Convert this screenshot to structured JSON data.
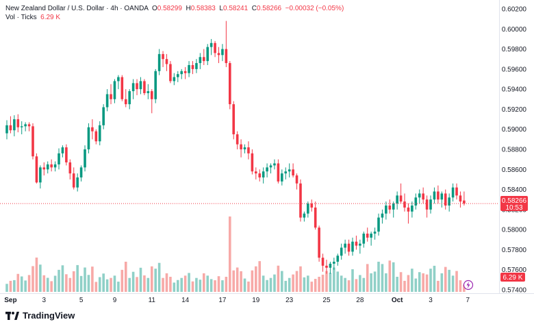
{
  "header": {
    "symbol": "New Zealand Dollar / U.S. Dollar · 4h · OANDA",
    "o_label": "O",
    "o_value": "0.58299",
    "h_label": "H",
    "h_value": "0.58383",
    "l_label": "L",
    "l_value": "0.58241",
    "c_label": "C",
    "c_value": "0.58266",
    "change": "−0.00032 (−0.05%)",
    "vol_label": "Vol · Ticks",
    "vol_value": "6.29 K"
  },
  "price_badge": {
    "price": "0.58266",
    "countdown": "10:53",
    "color": "#f23645"
  },
  "volume_badge": {
    "value": "6.29 K"
  },
  "brand": {
    "name": "TradingView"
  },
  "colors": {
    "up": "#089981",
    "down": "#f23645",
    "up_vol": "#8fd0c7",
    "down_vol": "#f7a9a7"
  },
  "chart_data": {
    "type": "candlestick",
    "timeframe": "4h",
    "y_ticks": [
      "0.60200",
      "0.60000",
      "0.59800",
      "0.59600",
      "0.59400",
      "0.59200",
      "0.59000",
      "0.58800",
      "0.58600",
      "0.58400",
      "0.58200",
      "0.58000",
      "0.57800",
      "0.57600",
      "0.57400"
    ],
    "ylim": [
      0.574,
      0.602
    ],
    "x_ticks": [
      {
        "label": "Sep",
        "index": 1
      },
      {
        "label": "3",
        "index": 10
      },
      {
        "label": "5",
        "index": 20
      },
      {
        "label": "9",
        "index": 29
      },
      {
        "label": "11",
        "index": 39
      },
      {
        "label": "14",
        "index": 48
      },
      {
        "label": "17",
        "index": 58
      },
      {
        "label": "19",
        "index": 67
      },
      {
        "label": "23",
        "index": 76
      },
      {
        "label": "25",
        "index": 86
      },
      {
        "label": "28",
        "index": 95
      },
      {
        "label": "Oct",
        "index": 105
      },
      {
        "label": "3",
        "index": 114
      },
      {
        "label": "7",
        "index": 124
      }
    ],
    "candles": [
      [
        0.5896,
        0.5909,
        0.589,
        0.5904,
        6.9
      ],
      [
        0.5904,
        0.5913,
        0.5896,
        0.5899,
        9.5
      ],
      [
        0.5899,
        0.5914,
        0.5893,
        0.591,
        10.1
      ],
      [
        0.591,
        0.5915,
        0.5897,
        0.5902,
        15.5
      ],
      [
        0.5902,
        0.5908,
        0.5895,
        0.5903,
        13.3
      ],
      [
        0.5903,
        0.5907,
        0.5898,
        0.5905,
        9.8
      ],
      [
        0.5905,
        0.5907,
        0.5898,
        0.5903,
        14.5
      ],
      [
        0.5903,
        0.5906,
        0.587,
        0.5873,
        22.2
      ],
      [
        0.5873,
        0.5876,
        0.5846,
        0.5847,
        29.6
      ],
      [
        0.5847,
        0.5864,
        0.5841,
        0.5862,
        23.5
      ],
      [
        0.5862,
        0.5867,
        0.5854,
        0.586,
        14.3
      ],
      [
        0.586,
        0.5868,
        0.5856,
        0.5865,
        12.1
      ],
      [
        0.5865,
        0.587,
        0.5858,
        0.5862,
        9.2
      ],
      [
        0.5862,
        0.5868,
        0.5858,
        0.5865,
        13.9
      ],
      [
        0.5865,
        0.5881,
        0.586,
        0.5876,
        19.0
      ],
      [
        0.5876,
        0.5884,
        0.5872,
        0.5882,
        22.9
      ],
      [
        0.5882,
        0.5885,
        0.5864,
        0.5867,
        15.2
      ],
      [
        0.5867,
        0.587,
        0.585,
        0.5856,
        12.0
      ],
      [
        0.5856,
        0.5862,
        0.584,
        0.5842,
        17.8
      ],
      [
        0.5842,
        0.5856,
        0.5838,
        0.5852,
        23.1
      ],
      [
        0.5852,
        0.5864,
        0.5848,
        0.5862,
        13.7
      ],
      [
        0.5862,
        0.5884,
        0.5858,
        0.588,
        21.0
      ],
      [
        0.588,
        0.5906,
        0.5876,
        0.5902,
        14.6
      ],
      [
        0.5902,
        0.591,
        0.589,
        0.5898,
        21.8
      ],
      [
        0.5898,
        0.59,
        0.5885,
        0.5888,
        8.6
      ],
      [
        0.5888,
        0.5908,
        0.5884,
        0.5904,
        12.7
      ],
      [
        0.5904,
        0.5925,
        0.59,
        0.5922,
        15.8
      ],
      [
        0.5922,
        0.594,
        0.5918,
        0.5935,
        10.8
      ],
      [
        0.5935,
        0.5945,
        0.5925,
        0.593,
        12.0
      ],
      [
        0.593,
        0.595,
        0.5926,
        0.5948,
        14.0
      ],
      [
        0.5948,
        0.5954,
        0.594,
        0.5952,
        8.8
      ],
      [
        0.5952,
        0.5954,
        0.5928,
        0.593,
        19.0
      ],
      [
        0.593,
        0.594,
        0.5922,
        0.5925,
        26.0
      ],
      [
        0.5925,
        0.594,
        0.592,
        0.5938,
        12.0
      ],
      [
        0.5938,
        0.595,
        0.593,
        0.5946,
        17.3
      ],
      [
        0.5946,
        0.595,
        0.5934,
        0.594,
        12.8
      ],
      [
        0.594,
        0.5952,
        0.5935,
        0.5948,
        20.8
      ],
      [
        0.5948,
        0.595,
        0.5934,
        0.5936,
        14.2
      ],
      [
        0.5936,
        0.5945,
        0.593,
        0.5938,
        12.0
      ],
      [
        0.5938,
        0.594,
        0.5916,
        0.593,
        22.0
      ],
      [
        0.593,
        0.596,
        0.5926,
        0.5958,
        20.0
      ],
      [
        0.5958,
        0.598,
        0.5954,
        0.5975,
        25.0
      ],
      [
        0.5975,
        0.5978,
        0.5962,
        0.597,
        12.0
      ],
      [
        0.597,
        0.5975,
        0.5958,
        0.5965,
        16.0
      ],
      [
        0.5965,
        0.5968,
        0.5946,
        0.5948,
        13.0
      ],
      [
        0.5948,
        0.5956,
        0.5944,
        0.5952,
        8.0
      ],
      [
        0.5952,
        0.5958,
        0.5947,
        0.5955,
        10.2
      ],
      [
        0.5955,
        0.596,
        0.595,
        0.5958,
        12.0
      ],
      [
        0.5958,
        0.5962,
        0.595,
        0.5956,
        14.0
      ],
      [
        0.5956,
        0.5968,
        0.5952,
        0.5964,
        16.3
      ],
      [
        0.5964,
        0.5968,
        0.5955,
        0.596,
        9.0
      ],
      [
        0.596,
        0.597,
        0.5956,
        0.5966,
        12.0
      ],
      [
        0.5966,
        0.5976,
        0.596,
        0.5972,
        10.5
      ],
      [
        0.5972,
        0.598,
        0.5964,
        0.5968,
        16.0
      ],
      [
        0.5968,
        0.5985,
        0.5964,
        0.5982,
        14.0
      ],
      [
        0.5982,
        0.599,
        0.5974,
        0.5986,
        11.0
      ],
      [
        0.5986,
        0.5988,
        0.5972,
        0.5976,
        10.0
      ],
      [
        0.5976,
        0.5982,
        0.5966,
        0.5974,
        13.5
      ],
      [
        0.5974,
        0.5985,
        0.5968,
        0.598,
        10.0
      ],
      [
        0.598,
        0.6008,
        0.5962,
        0.5966,
        13.0
      ],
      [
        0.5966,
        0.5968,
        0.592,
        0.5925,
        65.0
      ],
      [
        0.5925,
        0.5928,
        0.589,
        0.5895,
        18.5
      ],
      [
        0.5895,
        0.5898,
        0.588,
        0.5885,
        21.0
      ],
      [
        0.5885,
        0.589,
        0.5872,
        0.588,
        17.8
      ],
      [
        0.588,
        0.5885,
        0.5876,
        0.5882,
        11.5
      ],
      [
        0.5882,
        0.5888,
        0.587,
        0.5876,
        8.9
      ],
      [
        0.5876,
        0.588,
        0.5855,
        0.5858,
        18.5
      ],
      [
        0.5858,
        0.5862,
        0.585,
        0.5856,
        22.0
      ],
      [
        0.5856,
        0.586,
        0.5848,
        0.5852,
        26.5
      ],
      [
        0.5852,
        0.5862,
        0.5846,
        0.5858,
        14.0
      ],
      [
        0.5858,
        0.5866,
        0.5852,
        0.5862,
        10.2
      ],
      [
        0.5862,
        0.5866,
        0.5856,
        0.5864,
        12.0
      ],
      [
        0.5864,
        0.587,
        0.586,
        0.5866,
        15.0
      ],
      [
        0.5866,
        0.587,
        0.5846,
        0.5848,
        22.6
      ],
      [
        0.5848,
        0.586,
        0.5844,
        0.5856,
        18.0
      ],
      [
        0.5856,
        0.5862,
        0.585,
        0.5858,
        9.5
      ],
      [
        0.5858,
        0.5866,
        0.5852,
        0.586,
        12.0
      ],
      [
        0.586,
        0.5866,
        0.5852,
        0.5854,
        15.0
      ],
      [
        0.5854,
        0.5856,
        0.584,
        0.5846,
        18.0
      ],
      [
        0.5846,
        0.585,
        0.5808,
        0.5812,
        22.0
      ],
      [
        0.5812,
        0.5818,
        0.5808,
        0.5816,
        12.5
      ],
      [
        0.5816,
        0.5828,
        0.5812,
        0.5826,
        14.0
      ],
      [
        0.5826,
        0.583,
        0.5818,
        0.5822,
        8.8
      ],
      [
        0.5822,
        0.5828,
        0.58,
        0.5802,
        11.2
      ],
      [
        0.5802,
        0.5804,
        0.5768,
        0.5772,
        13.0
      ],
      [
        0.5772,
        0.5776,
        0.5758,
        0.5764,
        14.8
      ],
      [
        0.5764,
        0.577,
        0.5756,
        0.5762,
        18.0
      ],
      [
        0.5762,
        0.5768,
        0.5756,
        0.5766,
        16.5
      ],
      [
        0.5766,
        0.5772,
        0.576,
        0.5768,
        21.0
      ],
      [
        0.5768,
        0.5776,
        0.5764,
        0.5774,
        17.5
      ],
      [
        0.5774,
        0.5786,
        0.577,
        0.5782,
        14.0
      ],
      [
        0.5782,
        0.579,
        0.5776,
        0.5786,
        12.0
      ],
      [
        0.5786,
        0.579,
        0.5774,
        0.5778,
        10.0
      ],
      [
        0.5778,
        0.5792,
        0.5774,
        0.5788,
        19.5
      ],
      [
        0.5788,
        0.5794,
        0.578,
        0.5784,
        11.0
      ],
      [
        0.5784,
        0.579,
        0.5776,
        0.5786,
        14.5
      ],
      [
        0.5786,
        0.5798,
        0.5782,
        0.5796,
        12.0
      ],
      [
        0.5796,
        0.5802,
        0.5788,
        0.5792,
        24.0
      ],
      [
        0.5792,
        0.5798,
        0.5784,
        0.5796,
        16.0
      ],
      [
        0.5796,
        0.5802,
        0.579,
        0.5798,
        17.5
      ],
      [
        0.5798,
        0.5816,
        0.5794,
        0.5812,
        26.0
      ],
      [
        0.5812,
        0.582,
        0.5806,
        0.5816,
        24.0
      ],
      [
        0.5816,
        0.5828,
        0.581,
        0.5824,
        16.0
      ],
      [
        0.5824,
        0.583,
        0.5816,
        0.582,
        27.0
      ],
      [
        0.582,
        0.5828,
        0.5812,
        0.5826,
        25.5
      ],
      [
        0.5826,
        0.5838,
        0.582,
        0.5834,
        13.0
      ],
      [
        0.5834,
        0.5846,
        0.5826,
        0.5828,
        17.0
      ],
      [
        0.5828,
        0.5836,
        0.5818,
        0.5822,
        9.5
      ],
      [
        0.5822,
        0.5826,
        0.5806,
        0.5818,
        14.5
      ],
      [
        0.5818,
        0.5828,
        0.5812,
        0.5824,
        20.0
      ],
      [
        0.5824,
        0.5836,
        0.582,
        0.5832,
        11.5
      ],
      [
        0.5832,
        0.584,
        0.5826,
        0.5836,
        17.0
      ],
      [
        0.5836,
        0.5842,
        0.5826,
        0.583,
        16.0
      ],
      [
        0.583,
        0.5834,
        0.5812,
        0.582,
        15.0
      ],
      [
        0.582,
        0.5834,
        0.5816,
        0.583,
        20.0
      ],
      [
        0.583,
        0.5842,
        0.5826,
        0.5838,
        22.5
      ],
      [
        0.5838,
        0.5844,
        0.5826,
        0.583,
        9.5
      ],
      [
        0.583,
        0.5838,
        0.5822,
        0.5836,
        16.0
      ],
      [
        0.5836,
        0.584,
        0.582,
        0.5824,
        21.5
      ],
      [
        0.5824,
        0.5836,
        0.5818,
        0.5832,
        19.0
      ],
      [
        0.5832,
        0.5846,
        0.5828,
        0.5842,
        14.0
      ],
      [
        0.5842,
        0.5846,
        0.583,
        0.5834,
        18.0
      ],
      [
        0.5834,
        0.5838,
        0.5822,
        0.5828,
        10.0
      ],
      [
        0.5829,
        0.5838,
        0.5824,
        0.5826,
        6.3
      ]
    ]
  }
}
